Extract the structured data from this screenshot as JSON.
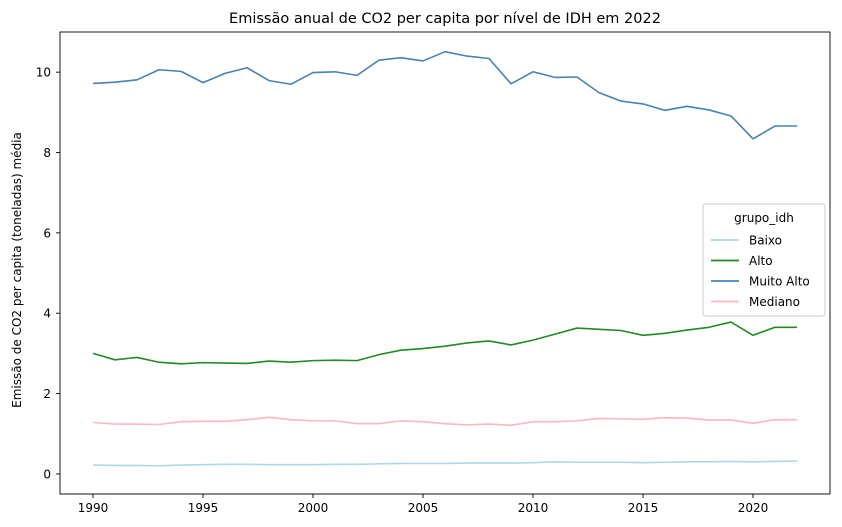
{
  "chart_data": {
    "type": "line",
    "title": "Emissão anual de CO2 per capita por nível de IDH em 2022",
    "xlabel": "",
    "ylabel": "Emissão de CO2 per capita (toneladas) média",
    "xlim": [
      1988.5,
      2023.5
    ],
    "ylim": [
      -0.5,
      11.0
    ],
    "xticks": [
      1990,
      1995,
      2000,
      2005,
      2010,
      2015,
      2020
    ],
    "yticks": [
      0,
      2,
      4,
      6,
      8,
      10
    ],
    "grid": false,
    "legend": {
      "title": "grupo_idh",
      "placement": "center-right"
    },
    "x": [
      1990,
      1991,
      1992,
      1993,
      1994,
      1995,
      1996,
      1997,
      1998,
      1999,
      2000,
      2001,
      2002,
      2003,
      2004,
      2005,
      2006,
      2007,
      2008,
      2009,
      2010,
      2011,
      2012,
      2013,
      2014,
      2015,
      2016,
      2017,
      2018,
      2019,
      2020,
      2021,
      2022
    ],
    "series": [
      {
        "name": "Baixo",
        "color": "#add8e6",
        "values": [
          0.22,
          0.21,
          0.21,
          0.2,
          0.22,
          0.23,
          0.24,
          0.24,
          0.23,
          0.23,
          0.23,
          0.24,
          0.24,
          0.25,
          0.26,
          0.26,
          0.26,
          0.27,
          0.27,
          0.27,
          0.28,
          0.3,
          0.29,
          0.29,
          0.29,
          0.28,
          0.29,
          0.3,
          0.3,
          0.31,
          0.3,
          0.31,
          0.32
        ]
      },
      {
        "name": "Alto",
        "color": "#228b22",
        "values": [
          3.0,
          2.84,
          2.9,
          2.78,
          2.74,
          2.77,
          2.76,
          2.75,
          2.81,
          2.78,
          2.82,
          2.83,
          2.82,
          2.97,
          3.08,
          3.12,
          3.18,
          3.26,
          3.31,
          3.21,
          3.33,
          3.48,
          3.63,
          3.6,
          3.57,
          3.45,
          3.5,
          3.58,
          3.65,
          3.78,
          3.45,
          3.65,
          3.65
        ]
      },
      {
        "name": "Muito Alto",
        "color": "#4682b4",
        "values": [
          9.72,
          9.75,
          9.81,
          10.06,
          10.02,
          9.74,
          9.97,
          10.11,
          9.79,
          9.7,
          9.99,
          10.01,
          9.92,
          10.3,
          10.36,
          10.28,
          10.51,
          10.4,
          10.34,
          9.71,
          10.01,
          9.87,
          9.88,
          9.49,
          9.28,
          9.21,
          9.05,
          9.15,
          9.06,
          8.91,
          8.34,
          8.66,
          8.66
        ]
      },
      {
        "name": "Mediano",
        "color": "#ffb6c1",
        "values": [
          1.28,
          1.24,
          1.24,
          1.23,
          1.3,
          1.31,
          1.31,
          1.35,
          1.41,
          1.35,
          1.32,
          1.32,
          1.25,
          1.25,
          1.32,
          1.3,
          1.25,
          1.22,
          1.24,
          1.21,
          1.3,
          1.3,
          1.32,
          1.38,
          1.37,
          1.36,
          1.4,
          1.39,
          1.34,
          1.34,
          1.26,
          1.35,
          1.35
        ]
      }
    ]
  }
}
